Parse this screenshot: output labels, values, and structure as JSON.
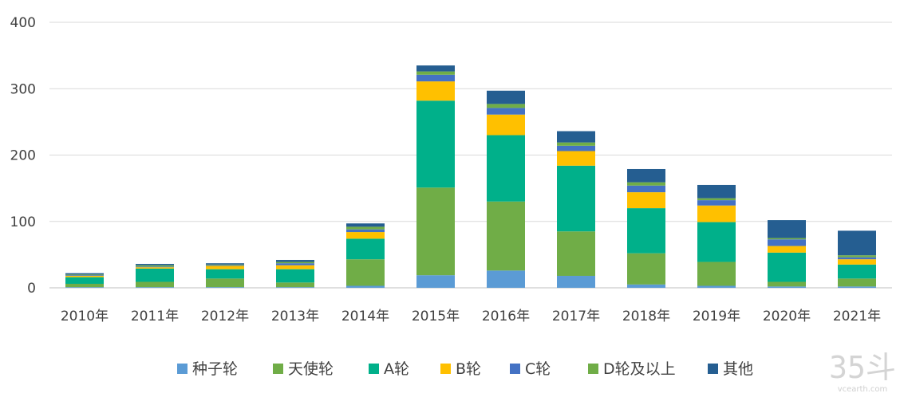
{
  "chart_data": {
    "type": "bar",
    "stacked": true,
    "title": "",
    "xlabel": "",
    "ylabel": "",
    "ylim": [
      0,
      400
    ],
    "yticks": [
      0,
      100,
      200,
      300,
      400
    ],
    "grid": "horizontal",
    "legend_position": "bottom",
    "categories": [
      "2010年",
      "2011年",
      "2012年",
      "2013年",
      "2014年",
      "2015年",
      "2016年",
      "2017年",
      "2018年",
      "2019年",
      "2020年",
      "2021年"
    ],
    "series": [
      {
        "name": "种子轮",
        "color": "#5b9bd5",
        "values": [
          1,
          1,
          1,
          1,
          3,
          19,
          26,
          18,
          5,
          3,
          2,
          2
        ]
      },
      {
        "name": "天使轮",
        "color": "#70ad47",
        "values": [
          5,
          8,
          13,
          7,
          40,
          132,
          104,
          67,
          47,
          36,
          7,
          12
        ]
      },
      {
        "name": "A轮",
        "color": "#00b08a",
        "values": [
          10,
          20,
          14,
          20,
          31,
          131,
          100,
          99,
          68,
          60,
          44,
          21
        ]
      },
      {
        "name": "B轮",
        "color": "#ffc000",
        "values": [
          2,
          2,
          5,
          6,
          10,
          29,
          31,
          22,
          24,
          25,
          10,
          8
        ]
      },
      {
        "name": "C轮",
        "color": "#4472c4",
        "values": [
          1,
          1,
          1,
          3,
          4,
          10,
          10,
          8,
          10,
          8,
          10,
          3
        ]
      },
      {
        "name": "D轮及以上",
        "color": "#70ad47",
        "values": [
          1,
          2,
          1,
          2,
          4,
          5,
          6,
          5,
          5,
          3,
          2,
          3
        ]
      },
      {
        "name": "其他",
        "color": "#255e91",
        "values": [
          2,
          2,
          2,
          3,
          5,
          9,
          20,
          17,
          20,
          20,
          27,
          37
        ]
      }
    ]
  },
  "watermark": {
    "logo": "35斗",
    "site": "vcearth.com"
  }
}
